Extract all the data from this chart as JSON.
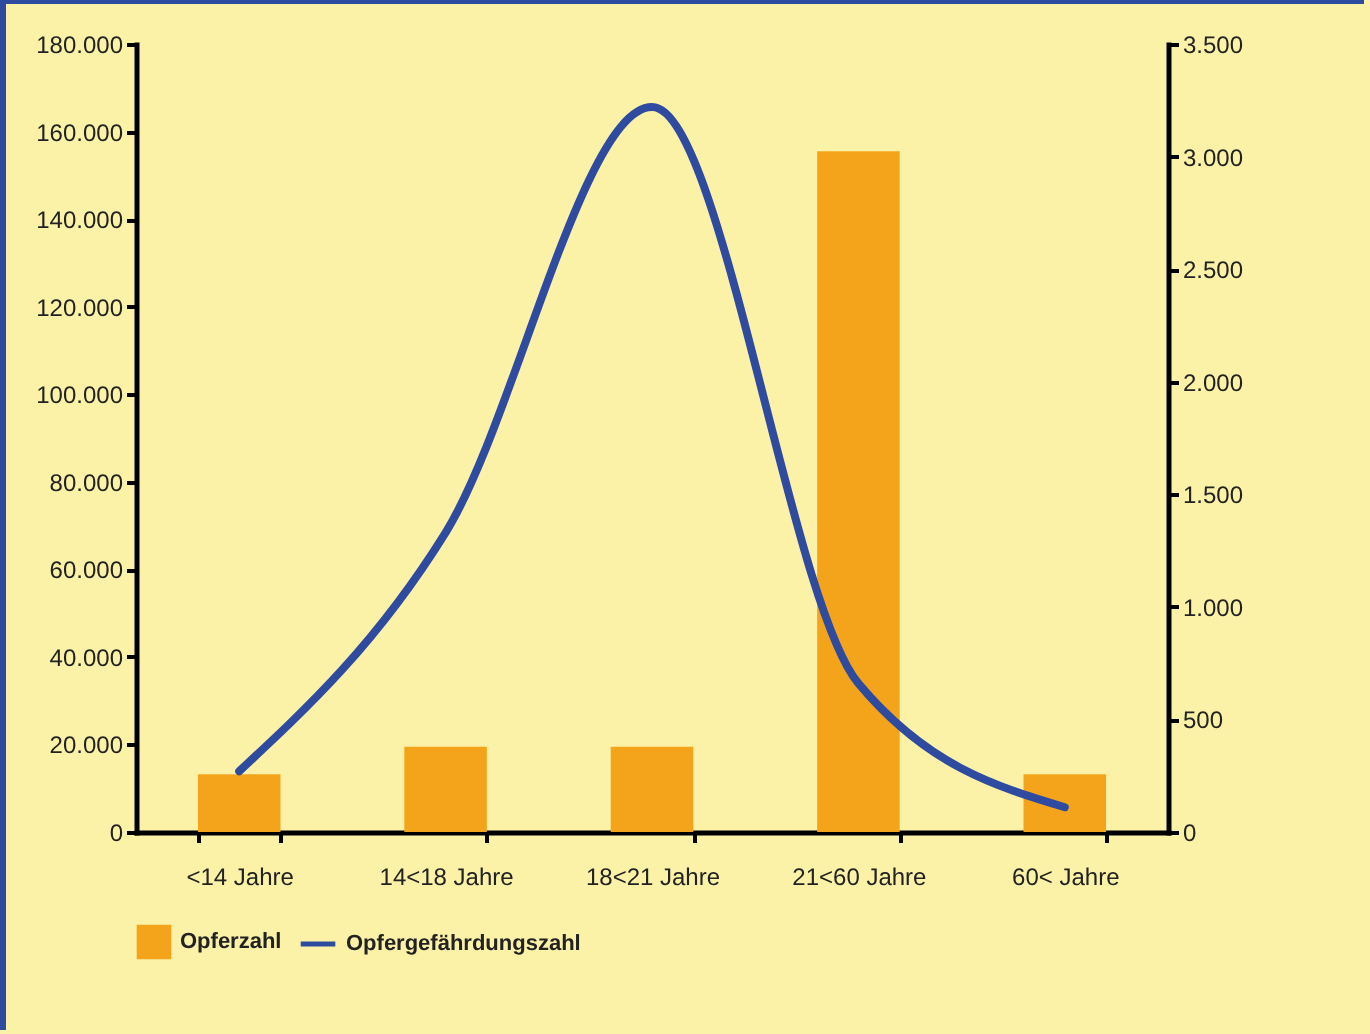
{
  "chart_data": {
    "type": "bar",
    "categories": [
      "<14 Jahre",
      "14<18 Jahre",
      "18<21 Jahre",
      "21<60 Jahre",
      "60< Jahre"
    ],
    "series": [
      {
        "name": "Opferzahl",
        "color": "#f4a41b",
        "values": [
          13200,
          19500,
          19500,
          155500,
          13200
        ]
      },
      {
        "name": "Opfergefährdungszahl",
        "type": "line",
        "axis": "y2",
        "color": "#2f4b9f",
        "values": [
          270,
          1330,
          3220,
          660,
          110
        ]
      }
    ],
    "ylim": [
      0,
      180000
    ],
    "yticks": [
      0,
      {
        "value": 20000,
        "label": "20.000"
      },
      {
        "value": 40000,
        "label": "40.000"
      },
      {
        "value": 60000,
        "label": "60.000"
      },
      {
        "value": 80000,
        "label": "80.000"
      },
      {
        "value": 100000,
        "label": "100.000"
      },
      {
        "value": 120000,
        "label": "120.000"
      },
      {
        "value": 140000,
        "label": "140.000"
      },
      {
        "value": 160000,
        "label": "160.000"
      },
      {
        "value": 180000,
        "label": "180.000"
      }
    ],
    "y2lim": [
      0,
      3500
    ],
    "y2ticks": [
      0,
      500,
      {
        "value": 1000,
        "label": "1.000"
      },
      {
        "value": 1500,
        "label": "1.500"
      },
      {
        "value": 2000,
        "label": "2.000"
      },
      {
        "value": 2500,
        "label": "2.500"
      },
      {
        "value": 3000,
        "label": "3.000"
      },
      {
        "value": 3500,
        "label": "3.500"
      }
    ],
    "grid": false,
    "legend": "bottom"
  }
}
